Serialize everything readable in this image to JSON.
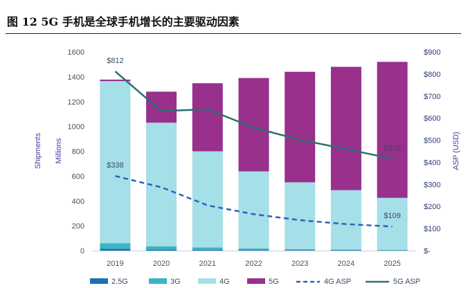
{
  "figure_title": "图 12 5G 手机是全球手机增长的主要驱动因素",
  "chart_data": {
    "type": "bar",
    "stacked": true,
    "categories": [
      "2019",
      "2020",
      "2021",
      "2022",
      "2023",
      "2024",
      "2025"
    ],
    "series": [
      {
        "name": "2.5G",
        "kind": "bar",
        "color": "#1f6fb2",
        "values": [
          15,
          8,
          6,
          5,
          4,
          3,
          2
        ]
      },
      {
        "name": "3G",
        "kind": "bar",
        "color": "#3bb5c4",
        "values": [
          45,
          27,
          20,
          12,
          8,
          6,
          5
        ]
      },
      {
        "name": "4G",
        "kind": "bar",
        "color": "#a5dfe8",
        "values": [
          1305,
          995,
          774,
          621,
          538,
          478,
          418
        ]
      },
      {
        "name": "5G",
        "kind": "bar",
        "color": "#98308c",
        "values": [
          12,
          250,
          548,
          752,
          890,
          993,
          1095
        ]
      },
      {
        "name": "4G ASP",
        "kind": "line",
        "axis": "right",
        "style": "dashed",
        "color": "#2a63b6",
        "values": [
          338,
          287,
          205,
          165,
          138,
          120,
          109
        ]
      },
      {
        "name": "5G ASP",
        "kind": "line",
        "axis": "right",
        "style": "solid",
        "color": "#2c6e73",
        "values": [
          812,
          632,
          640,
          557,
          502,
          460,
          416
        ]
      }
    ],
    "ylabel_left": [
      "Shipments",
      "Millions"
    ],
    "ylabel_right": "ASP (USD)",
    "ylim_left": [
      0,
      1600
    ],
    "ylim_right": [
      0,
      900
    ],
    "left_ticks": [
      "0",
      "200",
      "400",
      "600",
      "800",
      "1000",
      "1200",
      "1400",
      "1600"
    ],
    "right_ticks": [
      "$-",
      "$100",
      "$200",
      "$300",
      "$400",
      "$500",
      "$600",
      "$700",
      "$800",
      "$900"
    ],
    "data_labels": [
      {
        "series": "5G ASP",
        "index": 0,
        "text": "$812"
      },
      {
        "series": "5G ASP",
        "index": 6,
        "text": "$416"
      },
      {
        "series": "4G ASP",
        "index": 0,
        "text": "$338"
      },
      {
        "series": "4G ASP",
        "index": 6,
        "text": "$109"
      }
    ],
    "grid": false,
    "legend_position": "bottom"
  }
}
